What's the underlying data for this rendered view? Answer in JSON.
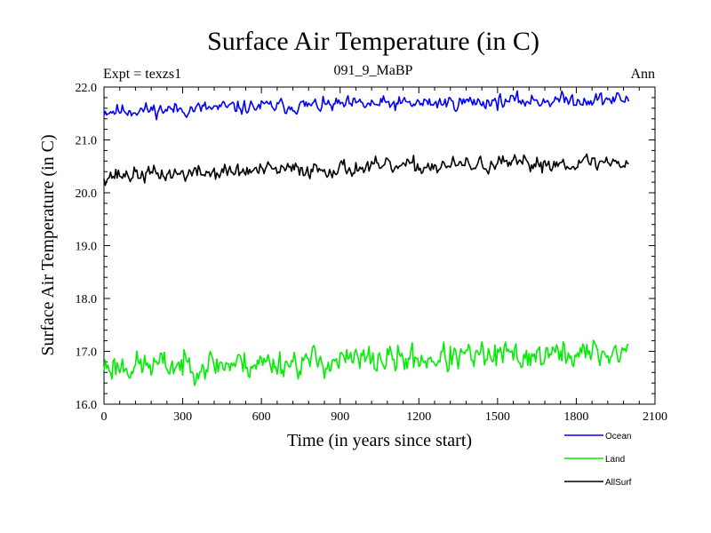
{
  "chart_data": {
    "type": "line",
    "title": "Surface Air Temperature (in C)",
    "subtitle_left": "Expt = texzs1",
    "subtitle_center": "091_9_MaBP",
    "subtitle_right": "Ann",
    "xlabel": "Time (in years since start)",
    "ylabel": "Surface Air Temperature (in C)",
    "xlim": [
      0,
      2100
    ],
    "ylim": [
      16.0,
      22.0
    ],
    "x_ticks": [
      0,
      300,
      600,
      900,
      1200,
      1500,
      1800,
      2100
    ],
    "x_tick_labels": [
      "0",
      "300",
      "600",
      "900",
      "1200",
      "1500",
      "1800",
      "2100"
    ],
    "y_ticks": [
      16.0,
      17.0,
      18.0,
      19.0,
      20.0,
      21.0,
      22.0
    ],
    "y_tick_labels": [
      "16.0",
      "17.0",
      "18.0",
      "19.0",
      "20.0",
      "21.0",
      "22.0"
    ],
    "x_step": 5,
    "series": [
      {
        "name": "Ocean",
        "color": "#0000ff",
        "x": [
          0,
          300,
          600,
          900,
          1200,
          1500,
          1800,
          2000
        ],
        "trend": [
          21.55,
          21.58,
          21.63,
          21.66,
          21.69,
          21.73,
          21.76,
          21.77
        ],
        "noise": 0.08,
        "seed": 11
      },
      {
        "name": "Land",
        "color": "#00ee00",
        "x": [
          0,
          300,
          600,
          900,
          1200,
          1500,
          1800,
          2000
        ],
        "trend": [
          16.72,
          16.74,
          16.78,
          16.82,
          16.86,
          16.9,
          16.95,
          16.98
        ],
        "noise": 0.16,
        "seed": 23
      },
      {
        "name": "AllSurf",
        "color": "#000000",
        "x": [
          0,
          300,
          600,
          900,
          1200,
          1500,
          1800,
          2000
        ],
        "trend": [
          20.33,
          20.36,
          20.42,
          20.46,
          20.5,
          20.53,
          20.57,
          20.58
        ],
        "noise": 0.09,
        "seed": 37
      }
    ],
    "legend": [
      {
        "label": "Ocean",
        "color": "#0000ff"
      },
      {
        "label": "Land",
        "color": "#00ee00"
      },
      {
        "label": "AllSurf",
        "color": "#000000"
      }
    ]
  }
}
